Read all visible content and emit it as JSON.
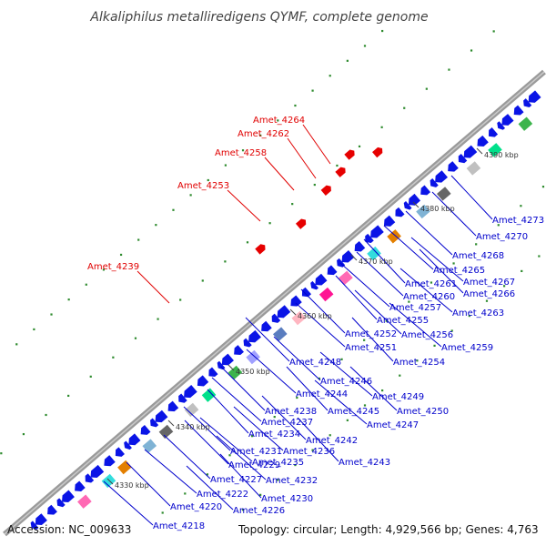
{
  "title": "Alkaliphilus metalliredigens QYMF, complete genome",
  "footer": {
    "accession": "Accession: NC_009633",
    "topology": "Topology: circular; Length: 4,929,566 bp; Genes: 4,763"
  },
  "colors": {
    "plus_strand_label": "#e00000",
    "minus_strand_label": "#0000cc",
    "gene_arrow": "#0a14e6",
    "backbone": "#8c8c8c",
    "skew_dots": "#2e8b2e"
  },
  "scale_labels": [
    "4330 kbp",
    "4340 kbp",
    "4350 kbp",
    "4360 kbp",
    "4370 kbp",
    "4380 kbp",
    "4390 kbp"
  ],
  "upper_genes": [
    "Amet_4264",
    "Amet_4262",
    "Amet_4258",
    "Amet_4253",
    "Amet_4239"
  ],
  "lower_genes": [
    "Amet_4273",
    "Amet_4270",
    "Amet_4268",
    "Amet_4265",
    "Amet_4267",
    "Amet_4261",
    "Amet_4266",
    "Amet_4260",
    "Amet_4257",
    "Amet_4263",
    "Amet_4255",
    "Amet_4252",
    "Amet_4256",
    "Amet_4251",
    "Amet_4259",
    "Amet_4254",
    "Amet_4248",
    "Amet_4246",
    "Amet_4244",
    "Amet_4249",
    "Amet_4245",
    "Amet_4238",
    "Amet_4250",
    "Amet_4237",
    "Amet_4247",
    "Amet_4234",
    "Amet_4242",
    "Amet_4231",
    "Amet_4236",
    "Amet_4235",
    "Amet_4243",
    "Amet_4229",
    "Amet_4227",
    "Amet_4232",
    "Amet_4222",
    "Amet_4230",
    "Amet_4220",
    "Amet_4226",
    "Amet_4218"
  ]
}
